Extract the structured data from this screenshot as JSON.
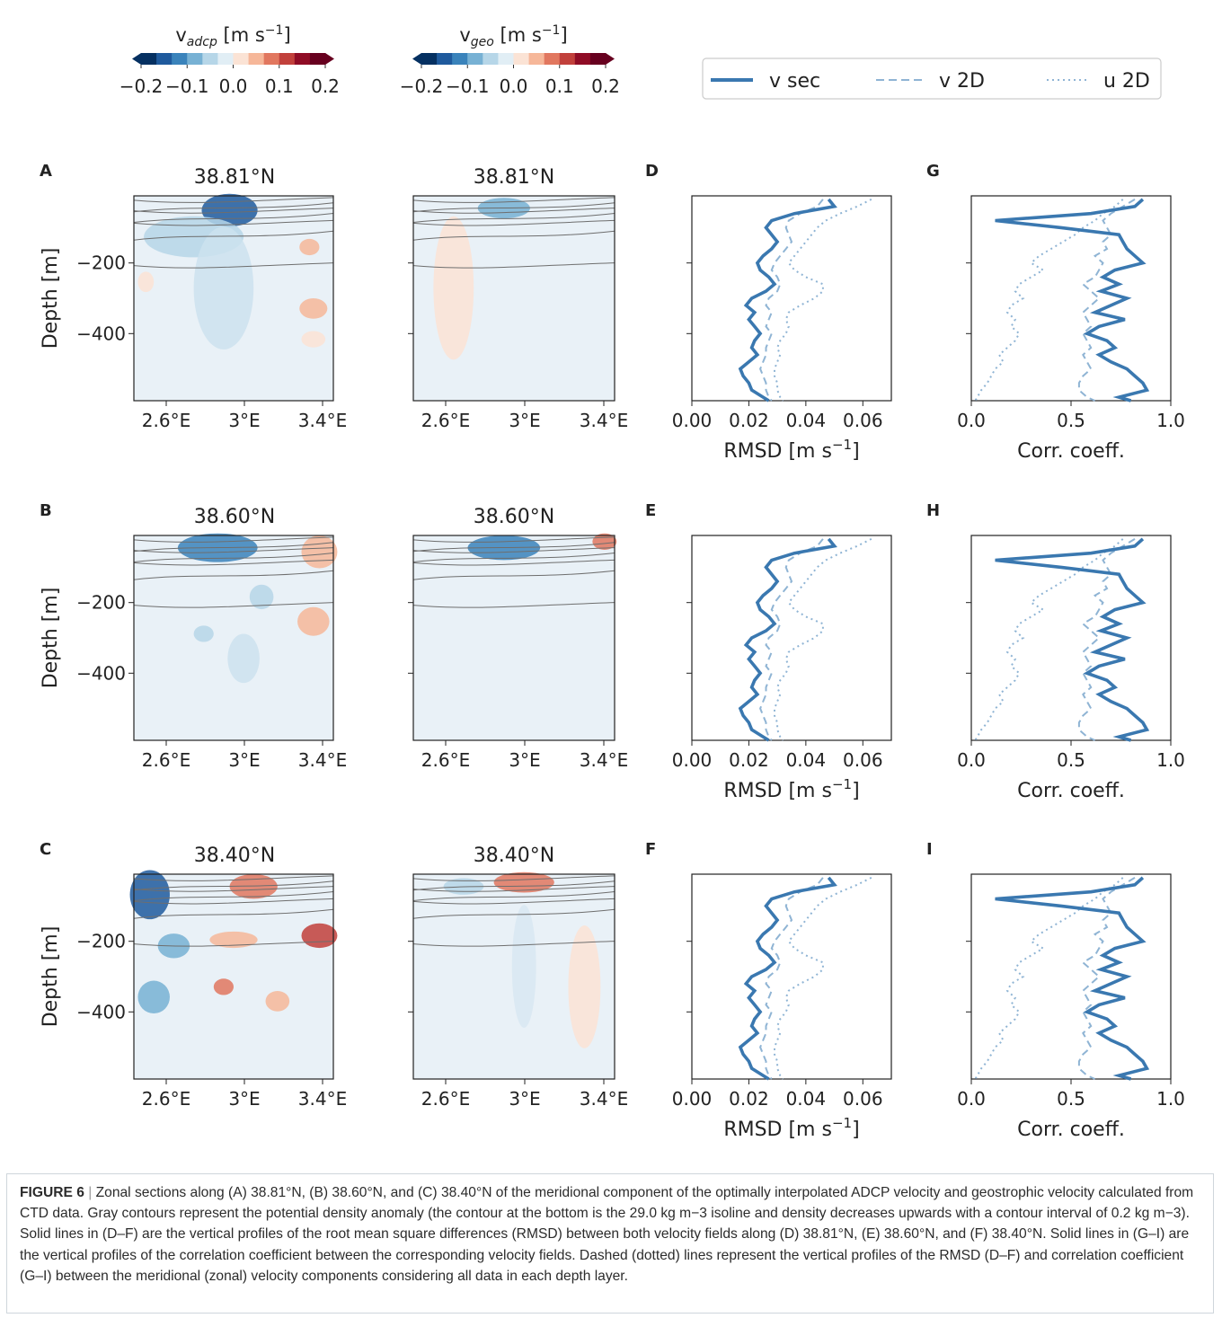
{
  "colorbars": [
    {
      "label_main": "v",
      "label_sub": "adcp",
      "label_unit": " [m s",
      "label_exp": "−1",
      "label_end": "]",
      "ticks": [
        "−0.2",
        "−0.1",
        "0.0",
        "0.1",
        "0.2"
      ]
    },
    {
      "label_main": "v",
      "label_sub": "geo",
      "label_unit": " [m s",
      "label_exp": "−1",
      "label_end": "]",
      "ticks": [
        "−0.2",
        "−0.1",
        "0.0",
        "0.1",
        "0.2"
      ]
    }
  ],
  "colormap": [
    "#053061",
    "#1f5a9d",
    "#3a83bb",
    "#77b1d4",
    "#b6d6e8",
    "#e1eef5",
    "#fbe3d5",
    "#f6b799",
    "#e1775f",
    "#c1403b",
    "#8f0c25",
    "#67001f"
  ],
  "legend": {
    "items": [
      {
        "label": "v sec",
        "style": "solid"
      },
      {
        "label": "v 2D",
        "style": "dashed"
      },
      {
        "label": "u 2D",
        "style": "dotted"
      }
    ]
  },
  "colors": {
    "line": "#3a78b0",
    "line_light": "#8fb4d4",
    "contour": "#6e6e6e"
  },
  "rows": [
    {
      "panel_section": "A",
      "panel_rmsd": "D",
      "panel_corr": "G",
      "title_adcp": "38.81°N",
      "title_geo": "38.81°N"
    },
    {
      "panel_section": "B",
      "panel_rmsd": "E",
      "panel_corr": "H",
      "title_adcp": "38.60°N",
      "title_geo": "38.60°N"
    },
    {
      "panel_section": "C",
      "panel_rmsd": "F",
      "panel_corr": "I",
      "title_adcp": "38.40°N",
      "title_geo": "38.40°N"
    }
  ],
  "axes": {
    "section_ylabel": "Depth [m]",
    "section_yticks": [
      "−200",
      "−400"
    ],
    "section_xticks": [
      "2.6°E",
      "3°E",
      "3.4°E"
    ],
    "rmsd_xticks": [
      "0.00",
      "0.02",
      "0.04",
      "0.06"
    ],
    "rmsd_xlabel": "RMSD [m s",
    "rmsd_xlabel_exp": "−1",
    "rmsd_xlabel_end": "]",
    "corr_xticks": [
      "0.0",
      "0.5",
      "1.0"
    ],
    "corr_xlabel": "Corr. coeff."
  },
  "chart_data": {
    "type": "line",
    "depth": [
      -20,
      -40,
      -60,
      -80,
      -100,
      -120,
      -140,
      -160,
      -180,
      -200,
      -220,
      -240,
      -260,
      -280,
      -300,
      -320,
      -340,
      -360,
      -380,
      -400,
      -420,
      -440,
      -460,
      -480,
      -500,
      -520,
      -540,
      -560,
      -580,
      -590
    ],
    "rmsd_xlim": [
      0,
      0.07
    ],
    "corr_xlim": [
      0,
      1
    ],
    "ylim": [
      -590,
      -10
    ],
    "rmsd": [
      {
        "name": "v sec",
        "values": [
          0.048,
          0.05,
          0.036,
          0.028,
          0.026,
          0.028,
          0.03,
          0.028,
          0.025,
          0.023,
          0.024,
          0.027,
          0.029,
          0.026,
          0.021,
          0.019,
          0.022,
          0.02,
          0.022,
          0.024,
          0.022,
          0.021,
          0.023,
          0.02,
          0.017,
          0.018,
          0.02,
          0.021,
          0.025,
          0.027
        ]
      },
      {
        "name": "v 2D",
        "values": [
          0.046,
          0.044,
          0.038,
          0.034,
          0.033,
          0.034,
          0.035,
          0.033,
          0.031,
          0.029,
          0.028,
          0.03,
          0.031,
          0.03,
          0.027,
          0.026,
          0.028,
          0.027,
          0.026,
          0.028,
          0.027,
          0.026,
          0.026,
          0.025,
          0.024,
          0.025,
          0.026,
          0.026,
          0.027,
          0.028
        ]
      },
      {
        "name": "u 2D",
        "values": [
          0.063,
          0.058,
          0.052,
          0.047,
          0.044,
          0.042,
          0.04,
          0.038,
          0.036,
          0.034,
          0.036,
          0.04,
          0.046,
          0.046,
          0.043,
          0.038,
          0.034,
          0.033,
          0.034,
          0.033,
          0.031,
          0.03,
          0.031,
          0.03,
          0.029,
          0.029,
          0.03,
          0.03,
          0.031,
          0.032
        ]
      }
    ],
    "corr": [
      {
        "name": "v sec",
        "values": [
          0.86,
          0.82,
          0.6,
          0.12,
          0.45,
          0.74,
          0.76,
          0.78,
          0.82,
          0.86,
          0.72,
          0.66,
          0.74,
          0.65,
          0.78,
          0.7,
          0.62,
          0.77,
          0.64,
          0.58,
          0.68,
          0.72,
          0.64,
          0.7,
          0.78,
          0.82,
          0.86,
          0.88,
          0.74,
          0.8
        ]
      },
      {
        "name": "v 2D",
        "values": [
          0.82,
          0.76,
          0.7,
          0.66,
          0.68,
          0.7,
          0.66,
          0.68,
          0.62,
          0.66,
          0.64,
          0.62,
          0.56,
          0.6,
          0.64,
          0.6,
          0.56,
          0.58,
          0.6,
          0.56,
          0.58,
          0.6,
          0.56,
          0.58,
          0.6,
          0.56,
          0.54,
          0.54,
          0.58,
          0.62
        ]
      },
      {
        "name": "u 2D",
        "values": [
          0.76,
          0.72,
          0.66,
          0.62,
          0.56,
          0.52,
          0.46,
          0.4,
          0.34,
          0.3,
          0.36,
          0.3,
          0.24,
          0.22,
          0.26,
          0.2,
          0.18,
          0.22,
          0.2,
          0.24,
          0.22,
          0.18,
          0.14,
          0.16,
          0.12,
          0.1,
          0.08,
          0.05,
          0.03,
          0.02
        ]
      }
    ]
  },
  "caption": {
    "label": "FIGURE 6",
    "sep": " | ",
    "text": "Zonal sections along (A) 38.81°N, (B) 38.60°N, and (C) 38.40°N of the meridional component of the optimally interpolated ADCP velocity and geostrophic velocity calculated from CTD data. Gray contours represent the potential density anomaly (the contour at the bottom is the 29.0 kg m−3 isoline and density decreases upwards with a contour interval of 0.2 kg m−3). Solid lines in (D–F) are the vertical profiles of the root mean square differences (RMSD) between both velocity fields along (D) 38.81°N, (E) 38.60°N, and (F) 38.40°N. Solid lines in (G–I) are the vertical profiles of the correlation coefficient between the corresponding velocity fields. Dashed (dotted) lines represent the vertical profiles of the RMSD (D–F) and correlation coefficient (G–I) between the meridional (zonal) velocity components considering all data in each depth layer."
  }
}
